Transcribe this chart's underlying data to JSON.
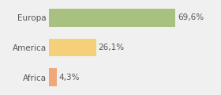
{
  "categories": [
    "Africa",
    "America",
    "Europa"
  ],
  "values": [
    4.3,
    26.1,
    69.6
  ],
  "labels": [
    "4,3%",
    "26,1%",
    "69,6%"
  ],
  "bar_colors": [
    "#f0a87a",
    "#f5d078",
    "#a8c080"
  ],
  "background_color": "#f0f0f0",
  "xlim": [
    0,
    80
  ],
  "bar_height": 0.6,
  "label_fontsize": 7.5,
  "tick_fontsize": 7.5
}
